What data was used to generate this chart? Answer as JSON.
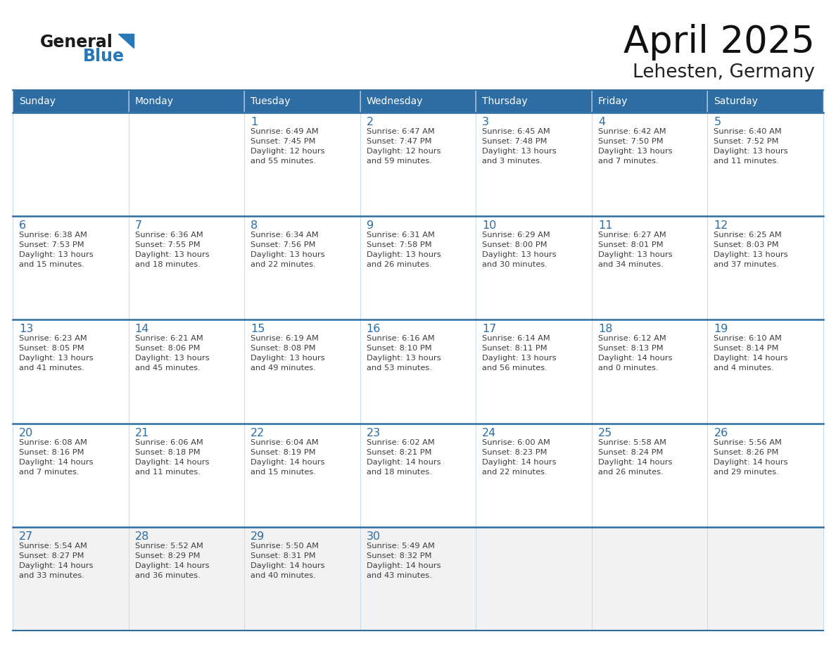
{
  "title": "April 2025",
  "subtitle": "Lehesten, Germany",
  "header_bg": "#2e6da4",
  "header_text_color": "#ffffff",
  "cell_bg_white": "#ffffff",
  "cell_bg_gray": "#f2f2f2",
  "day_names": [
    "Sunday",
    "Monday",
    "Tuesday",
    "Wednesday",
    "Thursday",
    "Friday",
    "Saturday"
  ],
  "grid_line_color": "#2e6da4",
  "cell_border_color": "#c8d8e8",
  "text_color": "#3d3d3d",
  "date_color": "#2e6da4",
  "logo_general_color": "#1a1a1a",
  "logo_blue_color": "#2878b8",
  "weeks": [
    [
      {
        "date": "",
        "sunrise": "",
        "sunset": "",
        "daylight": ""
      },
      {
        "date": "",
        "sunrise": "",
        "sunset": "",
        "daylight": ""
      },
      {
        "date": "1",
        "sunrise": "Sunrise: 6:49 AM",
        "sunset": "Sunset: 7:45 PM",
        "daylight": "Daylight: 12 hours\nand 55 minutes."
      },
      {
        "date": "2",
        "sunrise": "Sunrise: 6:47 AM",
        "sunset": "Sunset: 7:47 PM",
        "daylight": "Daylight: 12 hours\nand 59 minutes."
      },
      {
        "date": "3",
        "sunrise": "Sunrise: 6:45 AM",
        "sunset": "Sunset: 7:48 PM",
        "daylight": "Daylight: 13 hours\nand 3 minutes."
      },
      {
        "date": "4",
        "sunrise": "Sunrise: 6:42 AM",
        "sunset": "Sunset: 7:50 PM",
        "daylight": "Daylight: 13 hours\nand 7 minutes."
      },
      {
        "date": "5",
        "sunrise": "Sunrise: 6:40 AM",
        "sunset": "Sunset: 7:52 PM",
        "daylight": "Daylight: 13 hours\nand 11 minutes."
      }
    ],
    [
      {
        "date": "6",
        "sunrise": "Sunrise: 6:38 AM",
        "sunset": "Sunset: 7:53 PM",
        "daylight": "Daylight: 13 hours\nand 15 minutes."
      },
      {
        "date": "7",
        "sunrise": "Sunrise: 6:36 AM",
        "sunset": "Sunset: 7:55 PM",
        "daylight": "Daylight: 13 hours\nand 18 minutes."
      },
      {
        "date": "8",
        "sunrise": "Sunrise: 6:34 AM",
        "sunset": "Sunset: 7:56 PM",
        "daylight": "Daylight: 13 hours\nand 22 minutes."
      },
      {
        "date": "9",
        "sunrise": "Sunrise: 6:31 AM",
        "sunset": "Sunset: 7:58 PM",
        "daylight": "Daylight: 13 hours\nand 26 minutes."
      },
      {
        "date": "10",
        "sunrise": "Sunrise: 6:29 AM",
        "sunset": "Sunset: 8:00 PM",
        "daylight": "Daylight: 13 hours\nand 30 minutes."
      },
      {
        "date": "11",
        "sunrise": "Sunrise: 6:27 AM",
        "sunset": "Sunset: 8:01 PM",
        "daylight": "Daylight: 13 hours\nand 34 minutes."
      },
      {
        "date": "12",
        "sunrise": "Sunrise: 6:25 AM",
        "sunset": "Sunset: 8:03 PM",
        "daylight": "Daylight: 13 hours\nand 37 minutes."
      }
    ],
    [
      {
        "date": "13",
        "sunrise": "Sunrise: 6:23 AM",
        "sunset": "Sunset: 8:05 PM",
        "daylight": "Daylight: 13 hours\nand 41 minutes."
      },
      {
        "date": "14",
        "sunrise": "Sunrise: 6:21 AM",
        "sunset": "Sunset: 8:06 PM",
        "daylight": "Daylight: 13 hours\nand 45 minutes."
      },
      {
        "date": "15",
        "sunrise": "Sunrise: 6:19 AM",
        "sunset": "Sunset: 8:08 PM",
        "daylight": "Daylight: 13 hours\nand 49 minutes."
      },
      {
        "date": "16",
        "sunrise": "Sunrise: 6:16 AM",
        "sunset": "Sunset: 8:10 PM",
        "daylight": "Daylight: 13 hours\nand 53 minutes."
      },
      {
        "date": "17",
        "sunrise": "Sunrise: 6:14 AM",
        "sunset": "Sunset: 8:11 PM",
        "daylight": "Daylight: 13 hours\nand 56 minutes."
      },
      {
        "date": "18",
        "sunrise": "Sunrise: 6:12 AM",
        "sunset": "Sunset: 8:13 PM",
        "daylight": "Daylight: 14 hours\nand 0 minutes."
      },
      {
        "date": "19",
        "sunrise": "Sunrise: 6:10 AM",
        "sunset": "Sunset: 8:14 PM",
        "daylight": "Daylight: 14 hours\nand 4 minutes."
      }
    ],
    [
      {
        "date": "20",
        "sunrise": "Sunrise: 6:08 AM",
        "sunset": "Sunset: 8:16 PM",
        "daylight": "Daylight: 14 hours\nand 7 minutes."
      },
      {
        "date": "21",
        "sunrise": "Sunrise: 6:06 AM",
        "sunset": "Sunset: 8:18 PM",
        "daylight": "Daylight: 14 hours\nand 11 minutes."
      },
      {
        "date": "22",
        "sunrise": "Sunrise: 6:04 AM",
        "sunset": "Sunset: 8:19 PM",
        "daylight": "Daylight: 14 hours\nand 15 minutes."
      },
      {
        "date": "23",
        "sunrise": "Sunrise: 6:02 AM",
        "sunset": "Sunset: 8:21 PM",
        "daylight": "Daylight: 14 hours\nand 18 minutes."
      },
      {
        "date": "24",
        "sunrise": "Sunrise: 6:00 AM",
        "sunset": "Sunset: 8:23 PM",
        "daylight": "Daylight: 14 hours\nand 22 minutes."
      },
      {
        "date": "25",
        "sunrise": "Sunrise: 5:58 AM",
        "sunset": "Sunset: 8:24 PM",
        "daylight": "Daylight: 14 hours\nand 26 minutes."
      },
      {
        "date": "26",
        "sunrise": "Sunrise: 5:56 AM",
        "sunset": "Sunset: 8:26 PM",
        "daylight": "Daylight: 14 hours\nand 29 minutes."
      }
    ],
    [
      {
        "date": "27",
        "sunrise": "Sunrise: 5:54 AM",
        "sunset": "Sunset: 8:27 PM",
        "daylight": "Daylight: 14 hours\nand 33 minutes."
      },
      {
        "date": "28",
        "sunrise": "Sunrise: 5:52 AM",
        "sunset": "Sunset: 8:29 PM",
        "daylight": "Daylight: 14 hours\nand 36 minutes."
      },
      {
        "date": "29",
        "sunrise": "Sunrise: 5:50 AM",
        "sunset": "Sunset: 8:31 PM",
        "daylight": "Daylight: 14 hours\nand 40 minutes."
      },
      {
        "date": "30",
        "sunrise": "Sunrise: 5:49 AM",
        "sunset": "Sunset: 8:32 PM",
        "daylight": "Daylight: 14 hours\nand 43 minutes."
      },
      {
        "date": "",
        "sunrise": "",
        "sunset": "",
        "daylight": ""
      },
      {
        "date": "",
        "sunrise": "",
        "sunset": "",
        "daylight": ""
      },
      {
        "date": "",
        "sunrise": "",
        "sunset": "",
        "daylight": ""
      }
    ]
  ]
}
